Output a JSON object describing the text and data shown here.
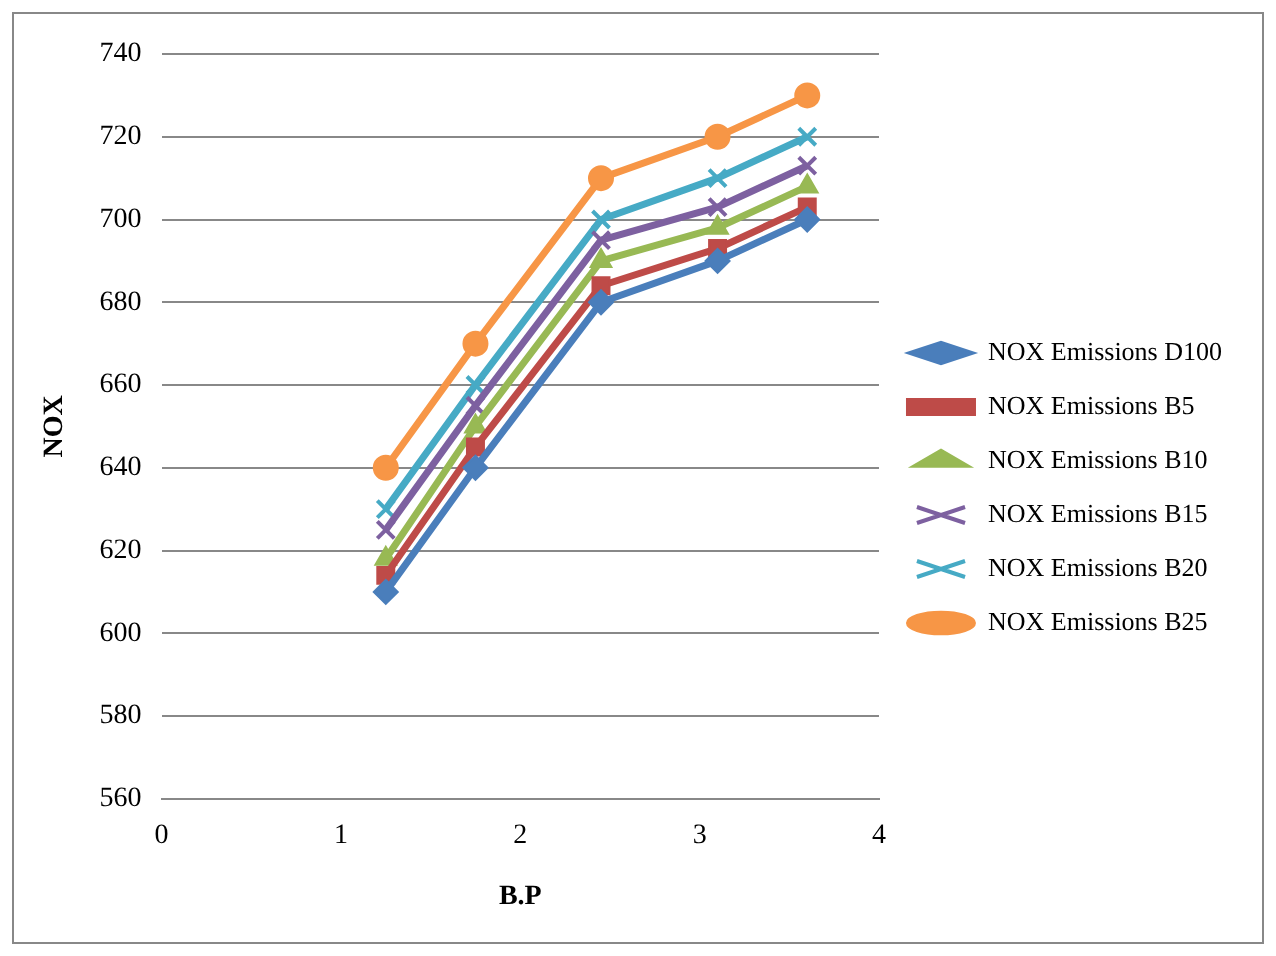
{
  "chart_data": {
    "type": "line",
    "xlabel": "B.P",
    "ylabel": "NOX",
    "x": [
      1.25,
      1.75,
      2.45,
      3.1,
      3.6
    ],
    "xlim": [
      0,
      4
    ],
    "xticks": [
      0,
      1,
      2,
      3,
      4
    ],
    "ylim": [
      560,
      740
    ],
    "yticks": [
      560,
      580,
      600,
      620,
      640,
      660,
      680,
      700,
      720,
      740
    ],
    "grid": "y",
    "legend": "right",
    "line_style": "solid",
    "series": [
      {
        "name": "NOX Emissions D100",
        "color": "#4a7ebb",
        "marker": "diamond",
        "values": [
          610,
          640,
          680,
          690,
          700
        ]
      },
      {
        "name": "NOX Emissions B5",
        "color": "#be4b48",
        "marker": "square",
        "values": [
          614,
          645,
          684,
          693,
          703
        ]
      },
      {
        "name": "NOX Emissions B10",
        "color": "#98b954",
        "marker": "triangle",
        "values": [
          618,
          650,
          690,
          698,
          708
        ]
      },
      {
        "name": "NOX Emissions B15",
        "color": "#7d60a0",
        "marker": "cross",
        "values": [
          625,
          655,
          695,
          703,
          713
        ]
      },
      {
        "name": "NOX Emissions B20",
        "color": "#46aac5",
        "marker": "cross",
        "values": [
          630,
          660,
          700,
          710,
          720
        ]
      },
      {
        "name": "NOX Emissions B25",
        "color": "#f79646",
        "marker": "circle",
        "values": [
          640,
          670,
          710,
          720,
          730
        ]
      }
    ]
  }
}
